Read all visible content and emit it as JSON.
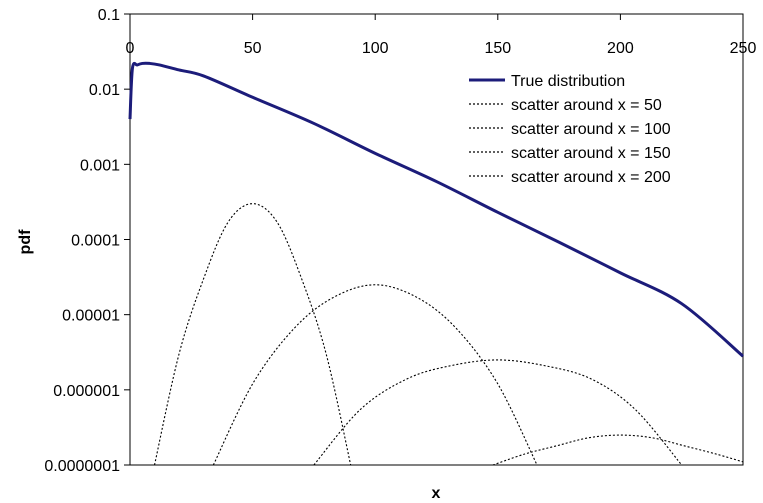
{
  "chart_data": {
    "type": "line",
    "title": "",
    "xlabel": "x",
    "ylabel": "pdf",
    "xlim": [
      0,
      250
    ],
    "ylim": [
      1e-07,
      0.1
    ],
    "y_scale": "log",
    "x_ticks": [
      "0",
      "50",
      "100",
      "150",
      "200",
      "250"
    ],
    "y_ticks": [
      "0.1",
      "0.01",
      "0.001",
      "0.0001",
      "0.00001",
      "0.000001",
      "0.0000001"
    ],
    "x_axis_position": "top",
    "grid": false,
    "legend_position": "top-right",
    "series": [
      {
        "name": "True distribution",
        "style": "solid",
        "color": "#1c1c7a",
        "x": [
          0,
          1,
          3,
          5,
          8,
          12,
          20,
          30,
          50,
          75,
          100,
          125,
          150,
          175,
          200,
          225,
          250
        ],
        "y": [
          0.004,
          0.019,
          0.021,
          0.022,
          0.022,
          0.021,
          0.018,
          0.015,
          0.0078,
          0.0035,
          0.0014,
          0.00059,
          0.00023,
          9.2e-05,
          3.6e-05,
          1.4e-05,
          2.8e-06
        ]
      },
      {
        "name": "scatter around x = 50",
        "style": "dotted",
        "color": "#000000",
        "x": [
          10,
          20,
          30,
          40,
          50,
          60,
          70,
          80,
          90
        ],
        "y": [
          1e-07,
          3e-06,
          3e-05,
          0.00017,
          0.0003,
          0.00017,
          3e-05,
          3e-06,
          1e-07
        ]
      },
      {
        "name": "scatter around x = 100",
        "style": "dotted",
        "color": "#000000",
        "x": [
          34,
          50,
          67,
          83,
          100,
          117,
          133,
          150,
          166
        ],
        "y": [
          1e-07,
          1.2e-06,
          6.6e-06,
          1.7e-05,
          2.5e-05,
          1.7e-05,
          6.6e-06,
          1.2e-06,
          1e-07
        ]
      },
      {
        "name": "scatter around x = 150",
        "style": "dotted",
        "color": "#000000",
        "x": [
          75,
          94,
          113,
          131,
          150,
          169,
          188,
          206,
          225
        ],
        "y": [
          1e-07,
          5.5e-07,
          1.4e-06,
          2.1e-06,
          2.5e-06,
          2.1e-06,
          1.4e-06,
          5.5e-07,
          1e-07
        ]
      },
      {
        "name": "scatter around x = 200",
        "style": "dotted",
        "color": "#000000",
        "x": [
          148,
          161,
          174,
          187,
          200,
          213,
          226,
          239,
          250
        ],
        "y": [
          1e-07,
          1.4e-07,
          1.8e-07,
          2.3e-07,
          2.5e-07,
          2.3e-07,
          1.8e-07,
          1.4e-07,
          1.1e-07
        ]
      }
    ]
  }
}
